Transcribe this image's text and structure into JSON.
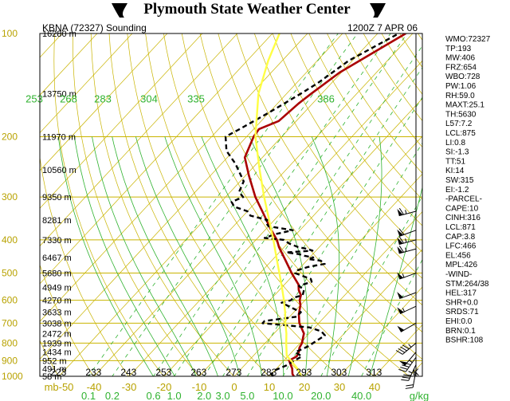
{
  "header": {
    "title": "Plymouth State Weather Center",
    "station": "KBNA (72327) Sounding",
    "time": "1200Z  7 APR 06"
  },
  "indices": [
    "WMO:72327",
    "TP:193",
    "MW:406",
    "FRZ:654",
    "WBO:728",
    "PW:1.06",
    "RH:59.0",
    "MAXT:25.1",
    "TH:5630",
    "L57:7.2",
    "LCL:875",
    "LI:0.8",
    "SI:-1.3",
    "TT:51",
    "KI:14",
    "SW:315",
    "EI:-1.2",
    "-PARCEL-",
    "CAPE:10",
    "CINH:316",
    "LCL:871",
    "CAP:3.8",
    "LFC:466",
    "EL:456",
    "MPL:426",
    "-WIND-",
    "STM:264/38",
    "HEL:317",
    "SHR+0.0",
    "SRDS:71",
    "EHI:0.0",
    "BRN:0.1",
    "BSHR:108"
  ],
  "chart_data": {
    "type": "line",
    "title": "KBNA (72327) Sounding",
    "xlabel": "",
    "ylabel": "mb",
    "y_scale": "log (pressure)",
    "ylim": [
      1000,
      100
    ],
    "xlim": [
      -50,
      50
    ],
    "grid": true,
    "pressure_ticks": [
      100,
      200,
      300,
      400,
      500,
      600,
      700,
      800,
      900,
      1000
    ],
    "pressure_tick_labels": [
      "100",
      "200",
      "300",
      "400",
      "500",
      "600",
      "700",
      "800",
      "900",
      "1000"
    ],
    "temperature_ticks": [
      -50,
      -40,
      -30,
      -20,
      -10,
      0,
      10,
      20,
      30,
      40
    ],
    "temperature_tick_labels": [
      "mb-50",
      "-40",
      "-30",
      "-20",
      "-10",
      "0",
      "10",
      "20",
      "30",
      "40"
    ],
    "mixing_ratio_labels": [
      "0.1",
      "0.2",
      "0.6",
      "1.0",
      "2.0",
      "3.0",
      "5.0",
      "10.0",
      "20.0",
      "40.0"
    ],
    "mixing_ratio_unit": "g/kg",
    "theta_labels_top": [
      "253",
      "268",
      "283",
      "304",
      "335",
      "386"
    ],
    "theta_labels_bottom": [
      "223",
      "233",
      "243",
      "253",
      "263",
      "273",
      "283",
      "293",
      "303",
      "313"
    ],
    "theta_unit": "K",
    "height_labels": [
      {
        "p": 100,
        "label": "16280 m"
      },
      {
        "p": 150,
        "label": "13750 m"
      },
      {
        "p": 200,
        "label": "11970 m"
      },
      {
        "p": 250,
        "label": "10560 m"
      },
      {
        "p": 300,
        "label": "9350 m"
      },
      {
        "p": 350,
        "label": "8281 m"
      },
      {
        "p": 400,
        "label": "7330 m"
      },
      {
        "p": 450,
        "label": "6467 m"
      },
      {
        "p": 500,
        "label": "5680 m"
      },
      {
        "p": 550,
        "label": "4949 m"
      },
      {
        "p": 600,
        "label": "4270 m"
      },
      {
        "p": 650,
        "label": "3633 m"
      },
      {
        "p": 700,
        "label": "3038 m"
      },
      {
        "p": 750,
        "label": "2472 m"
      },
      {
        "p": 800,
        "label": "1939 m"
      },
      {
        "p": 850,
        "label": "1434 m"
      },
      {
        "p": 900,
        "label": "952 m"
      },
      {
        "p": 950,
        "label": "491 m"
      },
      {
        "p": 1000,
        "label": "58 m"
      }
    ],
    "series": [
      {
        "role": "temperature",
        "color": "#aa0000",
        "p": [
          1000,
          985,
          950,
          925,
          900,
          875,
          850,
          825,
          800,
          775,
          750,
          700,
          660,
          620,
          600,
          580,
          560,
          540,
          500,
          460,
          420,
          400,
          370,
          340,
          300,
          260,
          230,
          200,
          190,
          180,
          160,
          150,
          130,
          100
        ],
        "t": [
          17.0,
          16.0,
          14.5,
          13.0,
          11.5,
          12.5,
          12.0,
          11.0,
          10.5,
          9.5,
          8.5,
          4.5,
          2.0,
          0.0,
          -1.5,
          -2.5,
          -4.5,
          -6.0,
          -11.0,
          -16.0,
          -21.5,
          -24.0,
          -29.0,
          -34.0,
          -41.5,
          -49.0,
          -55.0,
          -58.0,
          -58.5,
          -55.0,
          -54.0,
          -53.0,
          -50.5,
          -42.0
        ]
      },
      {
        "role": "dewpoint",
        "color": "#000000",
        "p": [
          1000,
          985,
          960,
          930,
          900,
          875,
          850,
          820,
          790,
          760,
          740,
          720,
          700,
          690,
          670,
          650,
          630,
          610,
          600,
          590,
          580,
          560,
          545,
          530,
          520,
          510,
          500,
          490,
          480,
          470,
          460,
          455,
          450,
          445,
          440,
          435,
          430,
          425,
          420,
          410,
          400,
          395,
          385,
          375,
          365,
          355,
          350,
          340,
          330,
          320,
          310,
          300,
          290,
          270,
          240,
          220,
          200,
          190,
          170,
          150,
          140,
          120,
          100
        ],
        "t": [
          11.0,
          10.0,
          10.0,
          12.0,
          13.0,
          14.0,
          11.0,
          13.0,
          14.0,
          15.0,
          13.0,
          8.5,
          -6.0,
          -6.0,
          2.0,
          2.0,
          -2.0,
          -6.0,
          -4.0,
          -4.0,
          -2.0,
          -3.0,
          -5.5,
          -3.0,
          -4.0,
          -7.0,
          -10.0,
          -10.0,
          -8.0,
          -4.0,
          -6.0,
          -10.0,
          -9.0,
          -12.0,
          -14.0,
          -18.0,
          -11.0,
          -13.0,
          -16.0,
          -19.5,
          -22.0,
          -28.0,
          -26.0,
          -22.0,
          -30.0,
          -32.0,
          -32.0,
          -38.0,
          -40.0,
          -45.0,
          -47.0,
          -45.0,
          -47.5,
          -49.0,
          -56.0,
          -62.0,
          -66.0,
          -64.0,
          -60.0,
          -56.0,
          -54.0,
          -51.0,
          -44.0
        ]
      },
      {
        "role": "parcel",
        "color": "#ffff44",
        "p": [
          1000,
          950,
          900,
          871,
          850,
          800,
          750,
          700,
          650,
          600,
          550,
          500,
          450,
          400,
          350,
          300,
          250,
          200,
          150,
          120,
          100
        ],
        "t": [
          19.0,
          16.0,
          12.0,
          9.5,
          8.5,
          6.0,
          3.5,
          0.5,
          -2.5,
          -6.0,
          -10.0,
          -14.5,
          -19.5,
          -25.0,
          -31.5,
          -39.0,
          -47.5,
          -57.5,
          -68.0,
          -74.0,
          -78.0
        ]
      }
    ],
    "wind_barbs": [
      {
        "p": 960,
        "dir": 190,
        "kt": 20
      },
      {
        "p": 925,
        "dir": 205,
        "kt": 35
      },
      {
        "p": 880,
        "dir": 215,
        "kt": 45
      },
      {
        "p": 850,
        "dir": 220,
        "kt": 50
      },
      {
        "p": 800,
        "dir": 230,
        "kt": 45
      },
      {
        "p": 700,
        "dir": 240,
        "kt": 50
      },
      {
        "p": 625,
        "dir": 245,
        "kt": 55
      },
      {
        "p": 570,
        "dir": 250,
        "kt": 50
      },
      {
        "p": 500,
        "dir": 250,
        "kt": 55
      },
      {
        "p": 425,
        "dir": 255,
        "kt": 65
      },
      {
        "p": 400,
        "dir": 255,
        "kt": 65
      },
      {
        "p": 375,
        "dir": 250,
        "kt": 60
      },
      {
        "p": 330,
        "dir": 255,
        "kt": 65
      }
    ],
    "colors": {
      "isobar": "#c9b400",
      "isotherm": "#c9b400",
      "dry_adiabat": "#c9b400",
      "moist_adiabat": "#2fb22f",
      "mixing_ratio": "#2fb22f",
      "temperature": "#aa0000",
      "dewpoint": "#000000",
      "parcel": "#ffff44"
    }
  }
}
